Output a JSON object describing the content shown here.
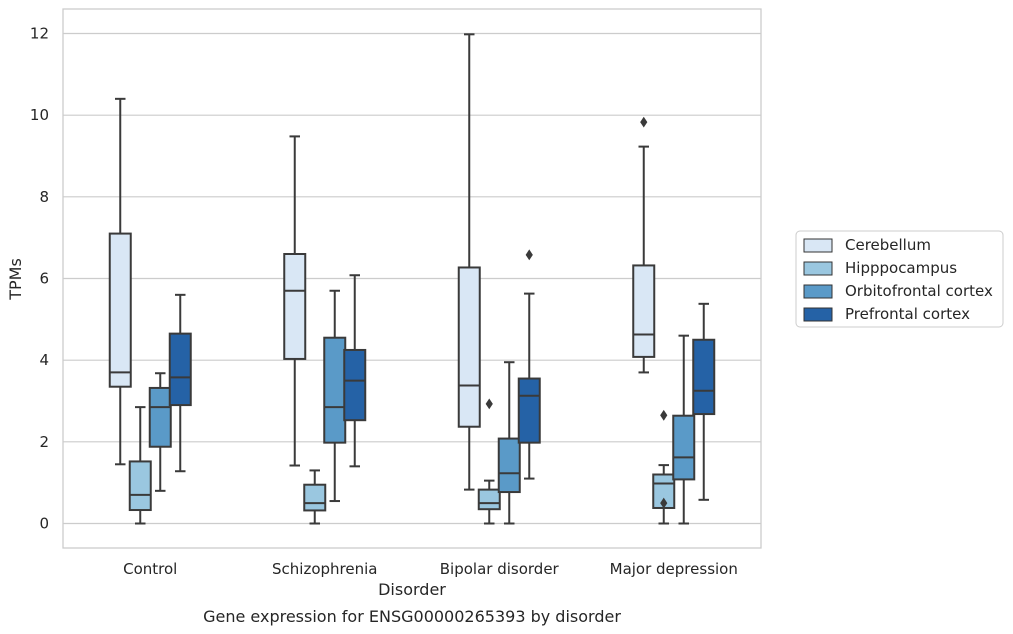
{
  "chart_data": {
    "type": "box",
    "title": "",
    "caption": "Gene expression for ENSG00000265393 by disorder",
    "xlabel": "Disorder",
    "ylabel": "TPMs",
    "ylim": [
      -0.6,
      12.6
    ],
    "yticks": [
      0,
      2,
      4,
      6,
      8,
      10,
      12
    ],
    "grid": "horizontal",
    "legend_position": "right",
    "categories": [
      "Control",
      "Schizophrenia",
      "Bipolar disorder",
      "Major depression"
    ],
    "series": [
      {
        "name": "Cerebellum",
        "color": "#d9e7f5",
        "boxes": [
          {
            "whisker_low": 1.45,
            "q1": 3.35,
            "median": 3.7,
            "q3": 7.1,
            "whisker_high": 10.4,
            "outliers": []
          },
          {
            "whisker_low": 1.42,
            "q1": 4.03,
            "median": 5.7,
            "q3": 6.6,
            "whisker_high": 9.48,
            "outliers": []
          },
          {
            "whisker_low": 0.83,
            "q1": 2.37,
            "median": 3.38,
            "q3": 6.27,
            "whisker_high": 11.98,
            "outliers": []
          },
          {
            "whisker_low": 3.7,
            "q1": 4.08,
            "median": 4.63,
            "q3": 6.32,
            "whisker_high": 9.23,
            "outliers": [
              9.83
            ]
          }
        ]
      },
      {
        "name": "Hipppocampus",
        "color": "#9ac7e0",
        "boxes": [
          {
            "whisker_low": 0.0,
            "q1": 0.33,
            "median": 0.7,
            "q3": 1.52,
            "whisker_high": 2.85,
            "outliers": []
          },
          {
            "whisker_low": 0.0,
            "q1": 0.32,
            "median": 0.5,
            "q3": 0.95,
            "whisker_high": 1.3,
            "outliers": []
          },
          {
            "whisker_low": 0.0,
            "q1": 0.35,
            "median": 0.5,
            "q3": 0.83,
            "whisker_high": 1.05,
            "outliers": [
              2.93
            ]
          },
          {
            "whisker_low": 0.0,
            "q1": 0.38,
            "median": 0.98,
            "q3": 1.2,
            "whisker_high": 1.43,
            "outliers": [
              2.65,
              0.5
            ]
          }
        ]
      },
      {
        "name": "Orbitofrontal cortex",
        "color": "#5a9ac8",
        "boxes": [
          {
            "whisker_low": 0.8,
            "q1": 1.88,
            "median": 2.85,
            "q3": 3.32,
            "whisker_high": 3.68,
            "outliers": []
          },
          {
            "whisker_low": 0.55,
            "q1": 1.98,
            "median": 2.85,
            "q3": 4.55,
            "whisker_high": 5.7,
            "outliers": []
          },
          {
            "whisker_low": 0.0,
            "q1": 0.77,
            "median": 1.23,
            "q3": 2.08,
            "whisker_high": 3.95,
            "outliers": []
          },
          {
            "whisker_low": 0.0,
            "q1": 1.08,
            "median": 1.62,
            "q3": 2.64,
            "whisker_high": 4.6,
            "outliers": []
          }
        ]
      },
      {
        "name": "Prefrontal cortex",
        "color": "#2562a6",
        "boxes": [
          {
            "whisker_low": 1.28,
            "q1": 2.9,
            "median": 3.58,
            "q3": 4.65,
            "whisker_high": 5.6,
            "outliers": []
          },
          {
            "whisker_low": 1.4,
            "q1": 2.53,
            "median": 3.5,
            "q3": 4.25,
            "whisker_high": 6.08,
            "outliers": []
          },
          {
            "whisker_low": 1.1,
            "q1": 1.98,
            "median": 3.13,
            "q3": 3.55,
            "whisker_high": 5.63,
            "outliers": [
              6.58
            ]
          },
          {
            "whisker_low": 0.58,
            "q1": 2.68,
            "median": 3.25,
            "q3": 4.5,
            "whisker_high": 5.38,
            "outliers": []
          }
        ]
      }
    ]
  }
}
